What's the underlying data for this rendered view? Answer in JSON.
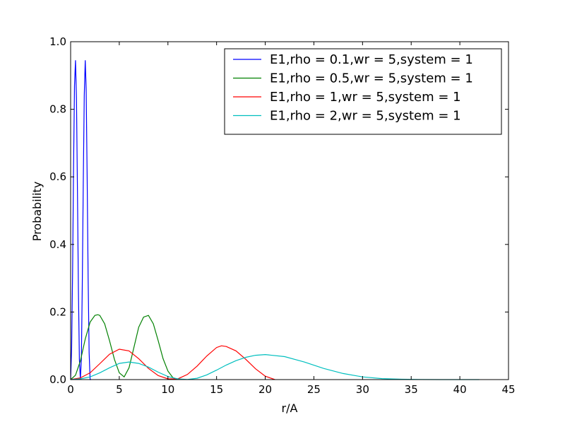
{
  "chart_data": {
    "type": "line",
    "title": "",
    "xlabel": "r/A",
    "ylabel": "Probability",
    "xlim": [
      0,
      45
    ],
    "ylim": [
      0,
      1.0
    ],
    "xticks": [
      0,
      5,
      10,
      15,
      20,
      25,
      30,
      35,
      40,
      45
    ],
    "yticks": [
      0.0,
      0.2,
      0.4,
      0.6,
      0.8,
      1.0
    ],
    "xtick_labels": [
      "0",
      "5",
      "10",
      "15",
      "20",
      "25",
      "30",
      "35",
      "40",
      "45"
    ],
    "ytick_labels": [
      "0.0",
      "0.2",
      "0.4",
      "0.6",
      "0.8",
      "1.0"
    ],
    "grid": false,
    "legend_position": "top-right",
    "series": [
      {
        "name": "E1,rho = 0.1,wr = 5,system = 1",
        "color": "#0000ff",
        "x": [
          0,
          0.1,
          0.2,
          0.3,
          0.4,
          0.5,
          0.6,
          0.7,
          0.8,
          0.9,
          1.0,
          1.1,
          1.2,
          1.3,
          1.4,
          1.5,
          1.6,
          1.7,
          1.8,
          1.9,
          2.0,
          2.1
        ],
        "y": [
          0,
          0.09,
          0.32,
          0.62,
          0.87,
          0.945,
          0.83,
          0.57,
          0.27,
          0.06,
          0,
          0.06,
          0.28,
          0.58,
          0.84,
          0.945,
          0.86,
          0.6,
          0.3,
          0.08,
          0,
          0
        ]
      },
      {
        "name": "E1,rho = 0.5,wr = 5,system = 1",
        "color": "#008000",
        "x": [
          0,
          0.5,
          1,
          1.5,
          2,
          2.5,
          2.8,
          3,
          3.5,
          4,
          4.5,
          5,
          5.5,
          6,
          6.5,
          7,
          7.5,
          8,
          8.5,
          9,
          9.5,
          10,
          10.5,
          11
        ],
        "y": [
          0,
          0.013,
          0.055,
          0.12,
          0.17,
          0.19,
          0.192,
          0.19,
          0.165,
          0.115,
          0.06,
          0.02,
          0.008,
          0.035,
          0.095,
          0.155,
          0.185,
          0.19,
          0.165,
          0.115,
          0.062,
          0.025,
          0.006,
          0
        ]
      },
      {
        "name": "E1,rho = 1,wr = 5,system = 1",
        "color": "#ff0000",
        "x": [
          0,
          1,
          2,
          3,
          4,
          5,
          6,
          7,
          8,
          9,
          10,
          11,
          12,
          13,
          14,
          15,
          15.5,
          16,
          17,
          18,
          19,
          20,
          21
        ],
        "y": [
          0,
          0.005,
          0.02,
          0.047,
          0.075,
          0.09,
          0.085,
          0.062,
          0.033,
          0.012,
          0.002,
          0.002,
          0.015,
          0.04,
          0.07,
          0.095,
          0.1,
          0.098,
          0.085,
          0.06,
          0.032,
          0.01,
          0
        ]
      },
      {
        "name": "E1,rho = 2,wr = 5,system = 1",
        "color": "#00bfbf",
        "x": [
          0,
          1,
          2,
          3,
          4,
          5,
          6,
          7,
          8,
          9,
          10,
          11,
          12,
          13,
          14,
          15,
          16,
          17,
          18,
          19,
          20,
          22,
          24,
          26,
          28,
          30,
          32,
          34,
          36,
          38,
          40,
          42
        ],
        "y": [
          0,
          0.002,
          0.008,
          0.02,
          0.035,
          0.048,
          0.052,
          0.048,
          0.037,
          0.022,
          0.009,
          0.002,
          0.0005,
          0.004,
          0.014,
          0.028,
          0.043,
          0.056,
          0.066,
          0.072,
          0.074,
          0.068,
          0.052,
          0.033,
          0.018,
          0.008,
          0.003,
          0.001,
          0.0003,
          0.0001,
          0,
          0
        ]
      }
    ]
  }
}
